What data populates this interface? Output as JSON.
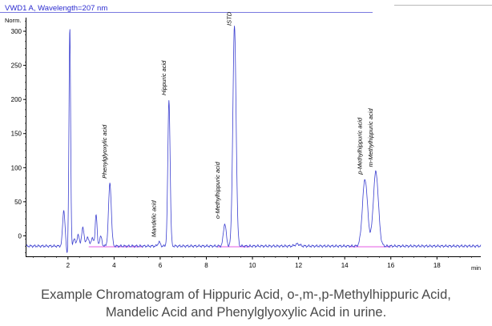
{
  "chart_data": {
    "type": "line",
    "title": "VWD1 A, Wavelength=207 nm",
    "ylabel": "Norm.",
    "xlabel": "min",
    "xlim": [
      0.2,
      19.9
    ],
    "ylim": [
      -30,
      320
    ],
    "x_ticks": [
      2,
      4,
      6,
      8,
      10,
      12,
      14,
      16,
      18
    ],
    "y_ticks": [
      0,
      50,
      100,
      150,
      200,
      250,
      300
    ],
    "baseline": -15,
    "series": [
      {
        "color": "#3b3fd0",
        "baseline_color": "#e040e0",
        "peaks": [
          {
            "x": 1.82,
            "height": 53,
            "width": 0.05
          },
          {
            "x": 2.08,
            "height": 320,
            "width": 0.035
          },
          {
            "x": 2.28,
            "height": 10,
            "width": 0.05
          },
          {
            "x": 2.45,
            "height": 16,
            "width": 0.05
          },
          {
            "x": 2.65,
            "height": 28,
            "width": 0.05
          },
          {
            "x": 2.85,
            "height": 14,
            "width": 0.05
          },
          {
            "x": 3.05,
            "height": 12,
            "width": 0.05
          },
          {
            "x": 3.22,
            "height": 47,
            "width": 0.04
          },
          {
            "x": 3.42,
            "height": 14,
            "width": 0.05
          },
          {
            "x": 3.82,
            "height": 92,
            "width": 0.06
          },
          {
            "x": 5.95,
            "height": 6,
            "width": 0.05
          },
          {
            "x": 6.38,
            "height": 214,
            "width": 0.05
          },
          {
            "x": 8.8,
            "height": 33,
            "width": 0.06
          },
          {
            "x": 9.22,
            "height": 322,
            "width": 0.07
          },
          {
            "x": 11.95,
            "height": 3,
            "width": 0.1
          },
          {
            "x": 14.88,
            "height": 98,
            "width": 0.11
          },
          {
            "x": 15.35,
            "height": 109,
            "width": 0.11
          }
        ]
      }
    ],
    "annotations": [
      {
        "label": "Phenylglyoxylic acid",
        "x": 3.82
      },
      {
        "label": "Mandelic acid",
        "x": 5.95
      },
      {
        "label": "Hippuric acid",
        "x": 6.38
      },
      {
        "label": "o-Methylhippuric acid",
        "x": 8.72
      },
      {
        "label": "ISTD",
        "x": 9.22
      },
      {
        "label": "p-Methylhippuric acid",
        "x": 14.88
      },
      {
        "label": "m-Methylhippuric acid",
        "x": 15.35
      }
    ]
  },
  "caption": {
    "line1": "Example Chromatogram of Hippuric Acid, o-,m-,p-Methylhippuric Acid,",
    "line2": "Mandelic Acid and Phenylglyoxylic Acid in urine."
  }
}
